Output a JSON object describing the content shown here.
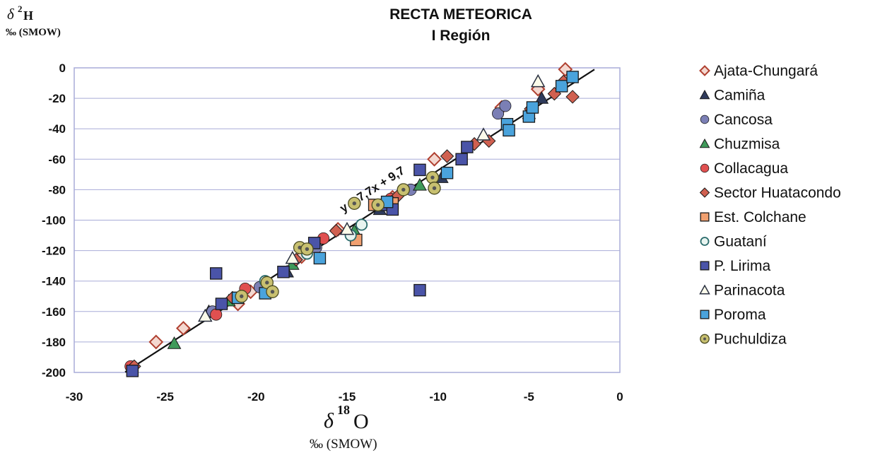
{
  "chart_data": {
    "type": "scatter",
    "title": "RECTA METEORICA",
    "subtitle": "I Región",
    "xlabel": {
      "symbol": "δ",
      "superscript": "18",
      "element": "O",
      "unit": "‰ (SMOW)"
    },
    "ylabel": {
      "symbol": "δ",
      "superscript": "2",
      "element": "H",
      "unit": "‰ (SMOW)"
    },
    "xlim": [
      -30,
      0
    ],
    "ylim": [
      -200,
      0
    ],
    "xticks": [
      -30,
      -25,
      -20,
      -15,
      -10,
      -5,
      0
    ],
    "yticks": [
      0,
      -20,
      -40,
      -60,
      -80,
      -100,
      -120,
      -140,
      -160,
      -180,
      -200
    ],
    "grid": {
      "horizontal": true,
      "vertical": false
    },
    "legend_position": "right",
    "trendline": {
      "label": "y = 7,7x + 9,7",
      "slope": 7.7,
      "intercept": 9.7,
      "x_range": [
        -27.2,
        -1.4
      ]
    },
    "series": [
      {
        "name": "Ajata-Chungará",
        "marker": "diamond-open",
        "color": "#b04030",
        "points": [
          [
            -25.5,
            -180
          ],
          [
            -24,
            -171
          ],
          [
            -21,
            -155
          ],
          [
            -20.3,
            -147
          ],
          [
            -17.5,
            -124
          ],
          [
            -15.5,
            -106
          ],
          [
            -12.5,
            -85
          ],
          [
            -10.2,
            -60
          ],
          [
            -6.5,
            -26
          ],
          [
            -4.5,
            -14
          ],
          [
            -3,
            -1
          ]
        ]
      },
      {
        "name": "Camiña",
        "marker": "triangle",
        "color": "#2f3b5c",
        "points": [
          [
            -22.6,
            -160
          ],
          [
            -18.3,
            -134
          ],
          [
            -13.2,
            -93
          ],
          [
            -9.8,
            -72
          ],
          [
            -5,
            -30
          ],
          [
            -4.3,
            -20
          ]
        ]
      },
      {
        "name": "Cancosa",
        "marker": "circle",
        "color": "#7b7fb5",
        "points": [
          [
            -22.4,
            -160
          ],
          [
            -19.8,
            -144
          ],
          [
            -16.7,
            -118
          ],
          [
            -11.5,
            -80
          ],
          [
            -6.7,
            -30
          ],
          [
            -6.3,
            -25
          ]
        ]
      },
      {
        "name": "Chuzmisa",
        "marker": "triangle",
        "color": "#3f9a5a",
        "points": [
          [
            -24.5,
            -181
          ],
          [
            -21.5,
            -153
          ],
          [
            -18,
            -129
          ],
          [
            -14.6,
            -107
          ],
          [
            -11,
            -77
          ]
        ]
      },
      {
        "name": "Collacagua",
        "marker": "circle",
        "color": "#e05050",
        "points": [
          [
            -26.9,
            -196
          ],
          [
            -22.2,
            -162
          ],
          [
            -20.6,
            -145
          ],
          [
            -16.3,
            -112
          ],
          [
            -12.6,
            -86
          ]
        ]
      },
      {
        "name": "Sector Huatacondo",
        "marker": "diamond",
        "color": "#d06050",
        "points": [
          [
            -26.7,
            -196
          ],
          [
            -21.3,
            -151
          ],
          [
            -17.8,
            -126
          ],
          [
            -15.6,
            -107
          ],
          [
            -12.2,
            -84
          ],
          [
            -9.5,
            -58
          ],
          [
            -8,
            -50
          ],
          [
            -7.2,
            -48
          ],
          [
            -4.9,
            -27
          ],
          [
            -3.6,
            -17
          ],
          [
            -3.1,
            -9
          ],
          [
            -2.6,
            -19
          ]
        ]
      },
      {
        "name": "Est. Colchane",
        "marker": "square",
        "color": "#f0a070",
        "points": [
          [
            -14.5,
            -113
          ],
          [
            -13.5,
            -90
          ],
          [
            -12.5,
            -89
          ]
        ]
      },
      {
        "name": "Guataní",
        "marker": "circle-open",
        "color": "#2a6b6b",
        "points": [
          [
            -19.5,
            -140
          ],
          [
            -17.2,
            -122
          ],
          [
            -14.2,
            -103
          ],
          [
            -14.8,
            -110
          ]
        ]
      },
      {
        "name": "P. Lirima",
        "marker": "square",
        "color": "#4a54a8",
        "points": [
          [
            -26.8,
            -199
          ],
          [
            -22.2,
            -135
          ],
          [
            -21.9,
            -155
          ],
          [
            -18.5,
            -134
          ],
          [
            -16.8,
            -115
          ],
          [
            -13,
            -90
          ],
          [
            -12.5,
            -93
          ],
          [
            -11,
            -67
          ],
          [
            -11,
            -146
          ],
          [
            -8.4,
            -52
          ],
          [
            -8.7,
            -60
          ]
        ]
      },
      {
        "name": "Parinacota",
        "marker": "triangle-open",
        "color": "#2a3040",
        "points": [
          [
            -22.8,
            -163
          ],
          [
            -18,
            -125
          ],
          [
            -15,
            -106
          ],
          [
            -7.5,
            -44
          ],
          [
            -4.5,
            -9
          ]
        ]
      },
      {
        "name": "Poroma",
        "marker": "square",
        "color": "#4aa3dc",
        "points": [
          [
            -21,
            -151
          ],
          [
            -19.5,
            -148
          ],
          [
            -16.5,
            -125
          ],
          [
            -12.8,
            -88
          ],
          [
            -9.5,
            -69
          ],
          [
            -6.2,
            -37
          ],
          [
            -6.1,
            -41
          ],
          [
            -5,
            -32
          ],
          [
            -4.8,
            -26
          ],
          [
            -3.2,
            -12
          ],
          [
            -2.6,
            -6
          ]
        ]
      },
      {
        "name": "Puchuldiza",
        "marker": "circle-dot",
        "color": "#c8c070",
        "points": [
          [
            -20.8,
            -150
          ],
          [
            -19.4,
            -141
          ],
          [
            -19.1,
            -147
          ],
          [
            -17.6,
            -118
          ],
          [
            -17.2,
            -119
          ],
          [
            -14.6,
            -89
          ],
          [
            -13.3,
            -90
          ],
          [
            -11.9,
            -80
          ],
          [
            -10.3,
            -72
          ],
          [
            -10.2,
            -79
          ]
        ]
      }
    ]
  }
}
